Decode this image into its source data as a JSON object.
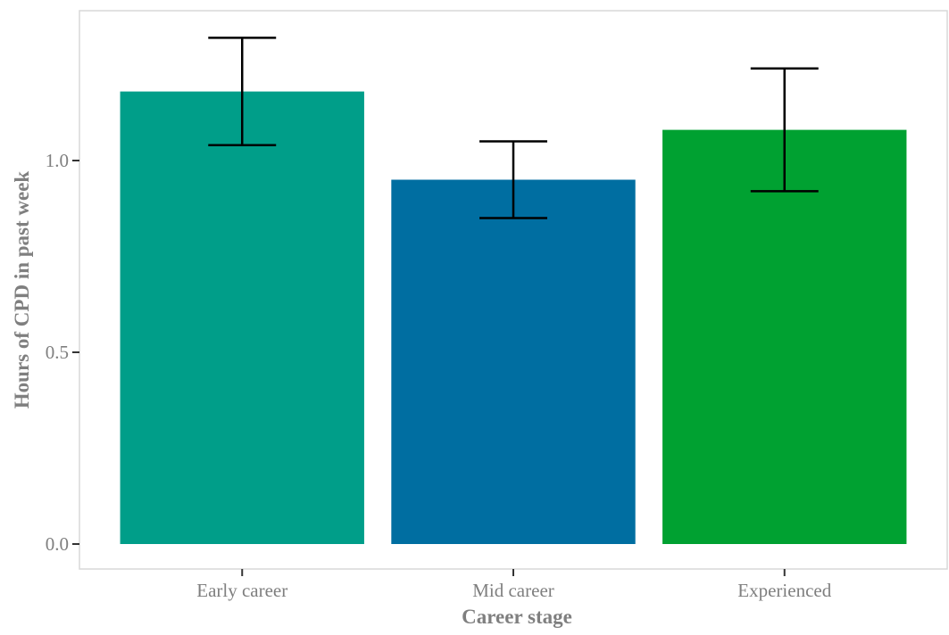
{
  "chart_data": {
    "type": "bar",
    "title": "",
    "xlabel": "Career stage",
    "ylabel": "Hours of CPD in past week",
    "categories": [
      "Early career",
      "Mid career",
      "Experienced"
    ],
    "values": [
      1.18,
      0.95,
      1.08
    ],
    "error_low": [
      1.04,
      0.85,
      0.92
    ],
    "error_high": [
      1.32,
      1.05,
      1.24
    ],
    "colors": [
      "#009e89",
      "#006ea1",
      "#00a131"
    ],
    "ylim": [
      -0.03,
      1.38
    ],
    "yticks": [
      0.0,
      0.5,
      1.0
    ],
    "ytick_labels": [
      "0.0",
      "0.5",
      "1.0"
    ],
    "grid": false,
    "legend": "none"
  }
}
